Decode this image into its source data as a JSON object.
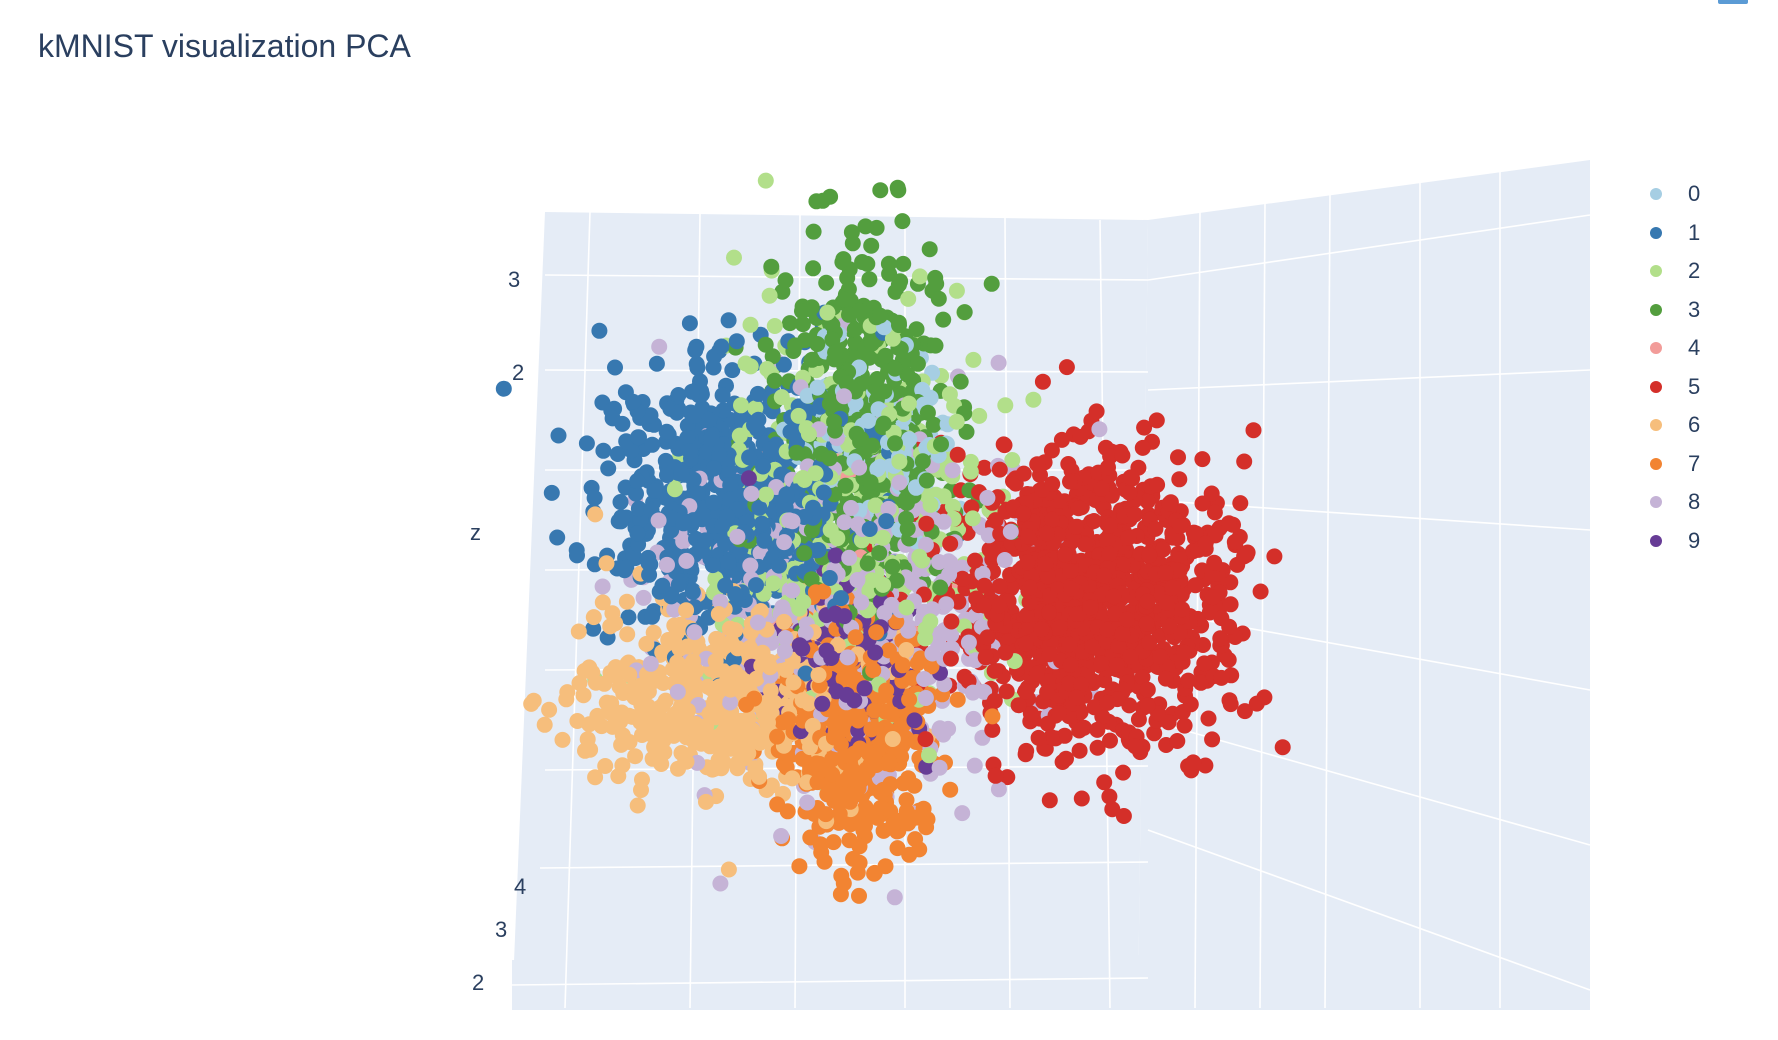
{
  "title": "kMNIST visualization PCA",
  "chart_data": {
    "type": "scatter3d",
    "title": "kMNIST visualization PCA",
    "zlabel": "z",
    "z_ticks": [
      "3",
      "2"
    ],
    "y_ticks": [
      "4",
      "3",
      "2"
    ],
    "legend_position": "top-right",
    "series": [
      {
        "name": "0",
        "color": "#a6cee3",
        "center": [
          0.1,
          -0.4,
          1.2
        ],
        "spread": [
          0.5,
          0.5,
          0.7
        ],
        "count": 160
      },
      {
        "name": "1",
        "color": "#3778b0",
        "center": [
          -1.5,
          0.6,
          1.1
        ],
        "spread": [
          0.9,
          0.6,
          1.0
        ],
        "count": 720
      },
      {
        "name": "2",
        "color": "#b2df8a",
        "center": [
          -0.4,
          0.3,
          0.9
        ],
        "spread": [
          1.1,
          0.6,
          1.5
        ],
        "count": 340
      },
      {
        "name": "3",
        "color": "#539e3e",
        "center": [
          -0.2,
          0.1,
          1.6
        ],
        "spread": [
          0.6,
          0.5,
          1.4
        ],
        "count": 520
      },
      {
        "name": "4",
        "color": "#f29c99",
        "center": [
          -0.3,
          0.1,
          0.2
        ],
        "spread": [
          0.8,
          0.5,
          1.0
        ],
        "count": 25
      },
      {
        "name": "5",
        "color": "#d42f29",
        "center": [
          1.9,
          -0.3,
          -0.2
        ],
        "spread": [
          1.0,
          0.6,
          1.1
        ],
        "count": 1050
      },
      {
        "name": "6",
        "color": "#f6be7c",
        "center": [
          -1.2,
          -0.4,
          -1.2
        ],
        "spread": [
          1.0,
          0.5,
          0.7
        ],
        "count": 520
      },
      {
        "name": "7",
        "color": "#f28432",
        "center": [
          0.1,
          -0.9,
          -1.8
        ],
        "spread": [
          0.5,
          0.5,
          0.9
        ],
        "count": 520
      },
      {
        "name": "8",
        "color": "#c5b3d6",
        "center": [
          -0.6,
          0.9,
          0.4
        ],
        "spread": [
          1.3,
          0.6,
          1.4
        ],
        "count": 440
      },
      {
        "name": "9",
        "color": "#673c96",
        "center": [
          -0.2,
          -0.3,
          -0.9
        ],
        "spread": [
          0.5,
          0.5,
          0.7
        ],
        "count": 160
      }
    ]
  }
}
